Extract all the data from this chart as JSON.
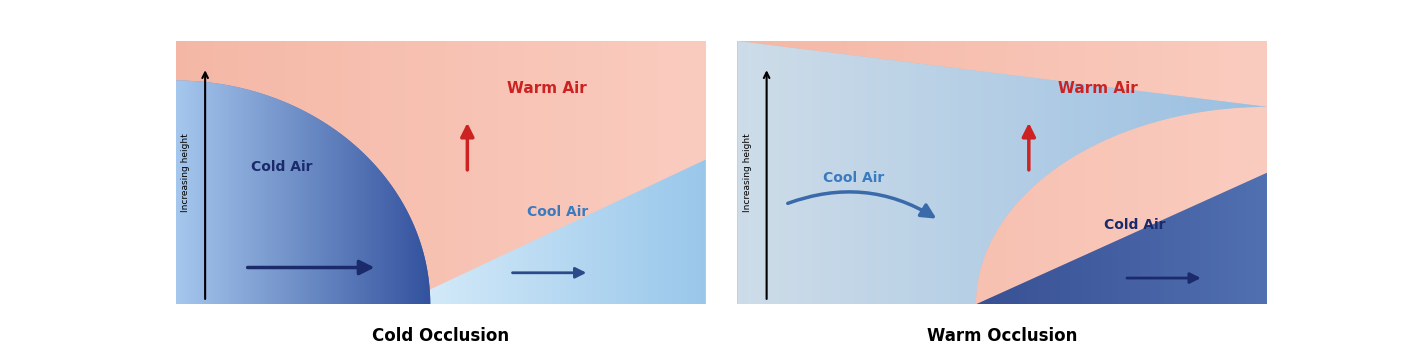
{
  "fig_width": 14.08,
  "fig_height": 3.42,
  "ground_color": "#5cb85c",
  "warm_text_color": "#cc2222",
  "cold_text_dark": "#1a2a6a",
  "cool_text_color": "#3a7abf",
  "title_color": "#000000",
  "left_title": "Cold Occlusion",
  "right_title": "Warm Occlusion",
  "ylabel": "Increasing height",
  "warm_air_label": "Warm Air",
  "cold_air_label": "Cold Air",
  "cool_air_label": "Cool Air"
}
